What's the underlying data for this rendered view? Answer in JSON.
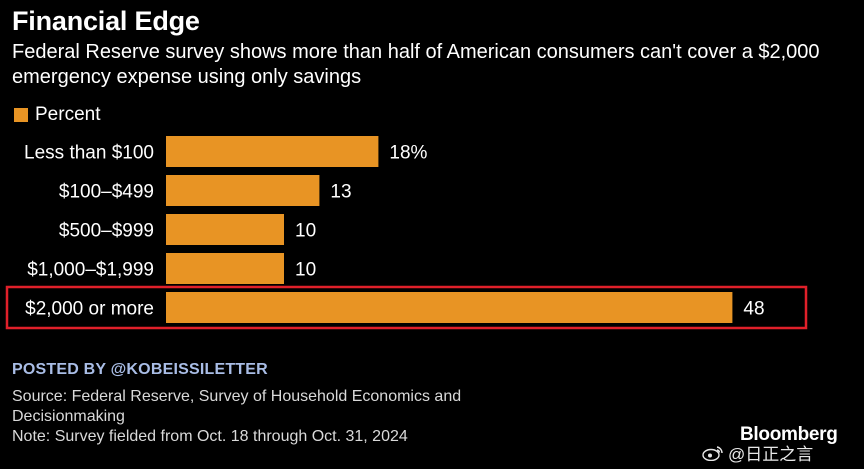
{
  "header": {
    "title": "Financial Edge",
    "subtitle": "Federal Reserve survey shows more than half of American consumers can't cover a $2,000 emergency expense using only savings"
  },
  "legend": {
    "label": "Percent",
    "color": "#e89424"
  },
  "chart_data": {
    "type": "bar",
    "orientation": "horizontal",
    "title": "Financial Edge",
    "subtitle": "Federal Reserve survey shows more than half of American consumers can't cover a $2,000 emergency expense using only savings",
    "categories": [
      "Less than $100",
      "$100–$499",
      "$500–$999",
      "$1,000–$1,999",
      "$2,000 or more"
    ],
    "values": [
      18,
      13,
      10,
      10,
      48
    ],
    "value_labels": [
      "18%",
      "13",
      "10",
      "10",
      "48"
    ],
    "series": [
      {
        "name": "Percent",
        "values": [
          18,
          13,
          10,
          10,
          48
        ]
      }
    ],
    "xlabel": "",
    "ylabel": "",
    "xlim": [
      0,
      50
    ],
    "grid": false,
    "legend_position": "top-left",
    "highlighted_category": "$2,000 or more",
    "bar_color": "#e89424",
    "highlight_color": "#e0202a"
  },
  "footer": {
    "posted_by": "POSTED BY @KOBEISSILETTER",
    "source": "Source: Federal Reserve, Survey of Household Economics and Decisionmaking",
    "note": "Note: Survey fielded from Oct. 18 through Oct. 31, 2024",
    "logo": "Bloomberg",
    "watermark": "@日正之言",
    "watermark_icon": "weibo-icon"
  }
}
